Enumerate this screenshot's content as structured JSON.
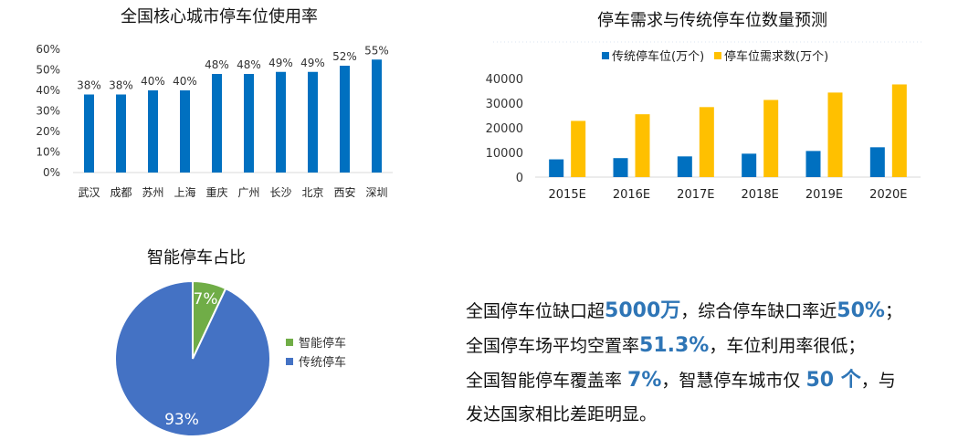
{
  "chart_data": [
    {
      "type": "bar",
      "title": "全国核心城市停车位使用率",
      "categories": [
        "武汉",
        "成都",
        "苏州",
        "上海",
        "重庆",
        "广州",
        "长沙",
        "北京",
        "西安",
        "深圳"
      ],
      "values": [
        38,
        38,
        40,
        40,
        48,
        48,
        49,
        49,
        52,
        55
      ],
      "data_labels": [
        "38%",
        "38%",
        "40%",
        "40%",
        "48%",
        "48%",
        "49%",
        "49%",
        "52%",
        "55%"
      ],
      "ylim": [
        0,
        60
      ],
      "yticks": [
        "0%",
        "10%",
        "20%",
        "30%",
        "40%",
        "50%",
        "60%"
      ],
      "grid": false,
      "color": "#0070c0"
    },
    {
      "type": "bar",
      "title": "停车需求与传统停车位数量预测",
      "categories": [
        "2015E",
        "2016E",
        "2017E",
        "2018E",
        "2019E",
        "2020E"
      ],
      "series": [
        {
          "name": "传统停车位(万个)",
          "values": [
            7200,
            7700,
            8400,
            9500,
            10600,
            12100
          ],
          "color": "#0070c0"
        },
        {
          "name": "停车位需求数(万个)",
          "values": [
            22800,
            25500,
            28400,
            31300,
            34300,
            37600
          ],
          "color": "#ffc000"
        }
      ],
      "ylim": [
        0,
        40000
      ],
      "yticks": [
        "0",
        "10000",
        "20000",
        "30000",
        "40000"
      ],
      "legend": "top",
      "grid": false
    },
    {
      "type": "pie",
      "title": "智能停车占比",
      "slices": [
        {
          "name": "智能停车",
          "value": 7,
          "label": "7%",
          "color": "#70ad47"
        },
        {
          "name": "传统停车",
          "value": 93,
          "label": "93%",
          "color": "#4472c4"
        }
      ],
      "legend": "right"
    }
  ],
  "summary": {
    "l1a": "全国停车位缺口超",
    "l1b": "5000万",
    "l1c": "，综合停车缺口率近",
    "l1d": "50%",
    "l1e": "；",
    "l2a": "全国停车场平均空置率",
    "l2b": "51.3%",
    "l2c": "，车位利用率很低；",
    "l3a": "全国智能停车覆盖率 ",
    "l3b": "7%",
    "l3c": "，智慧停车城市仅 ",
    "l3d": "50 个",
    "l3e": "，与",
    "l4a": "发达国家相比差距明显。"
  }
}
